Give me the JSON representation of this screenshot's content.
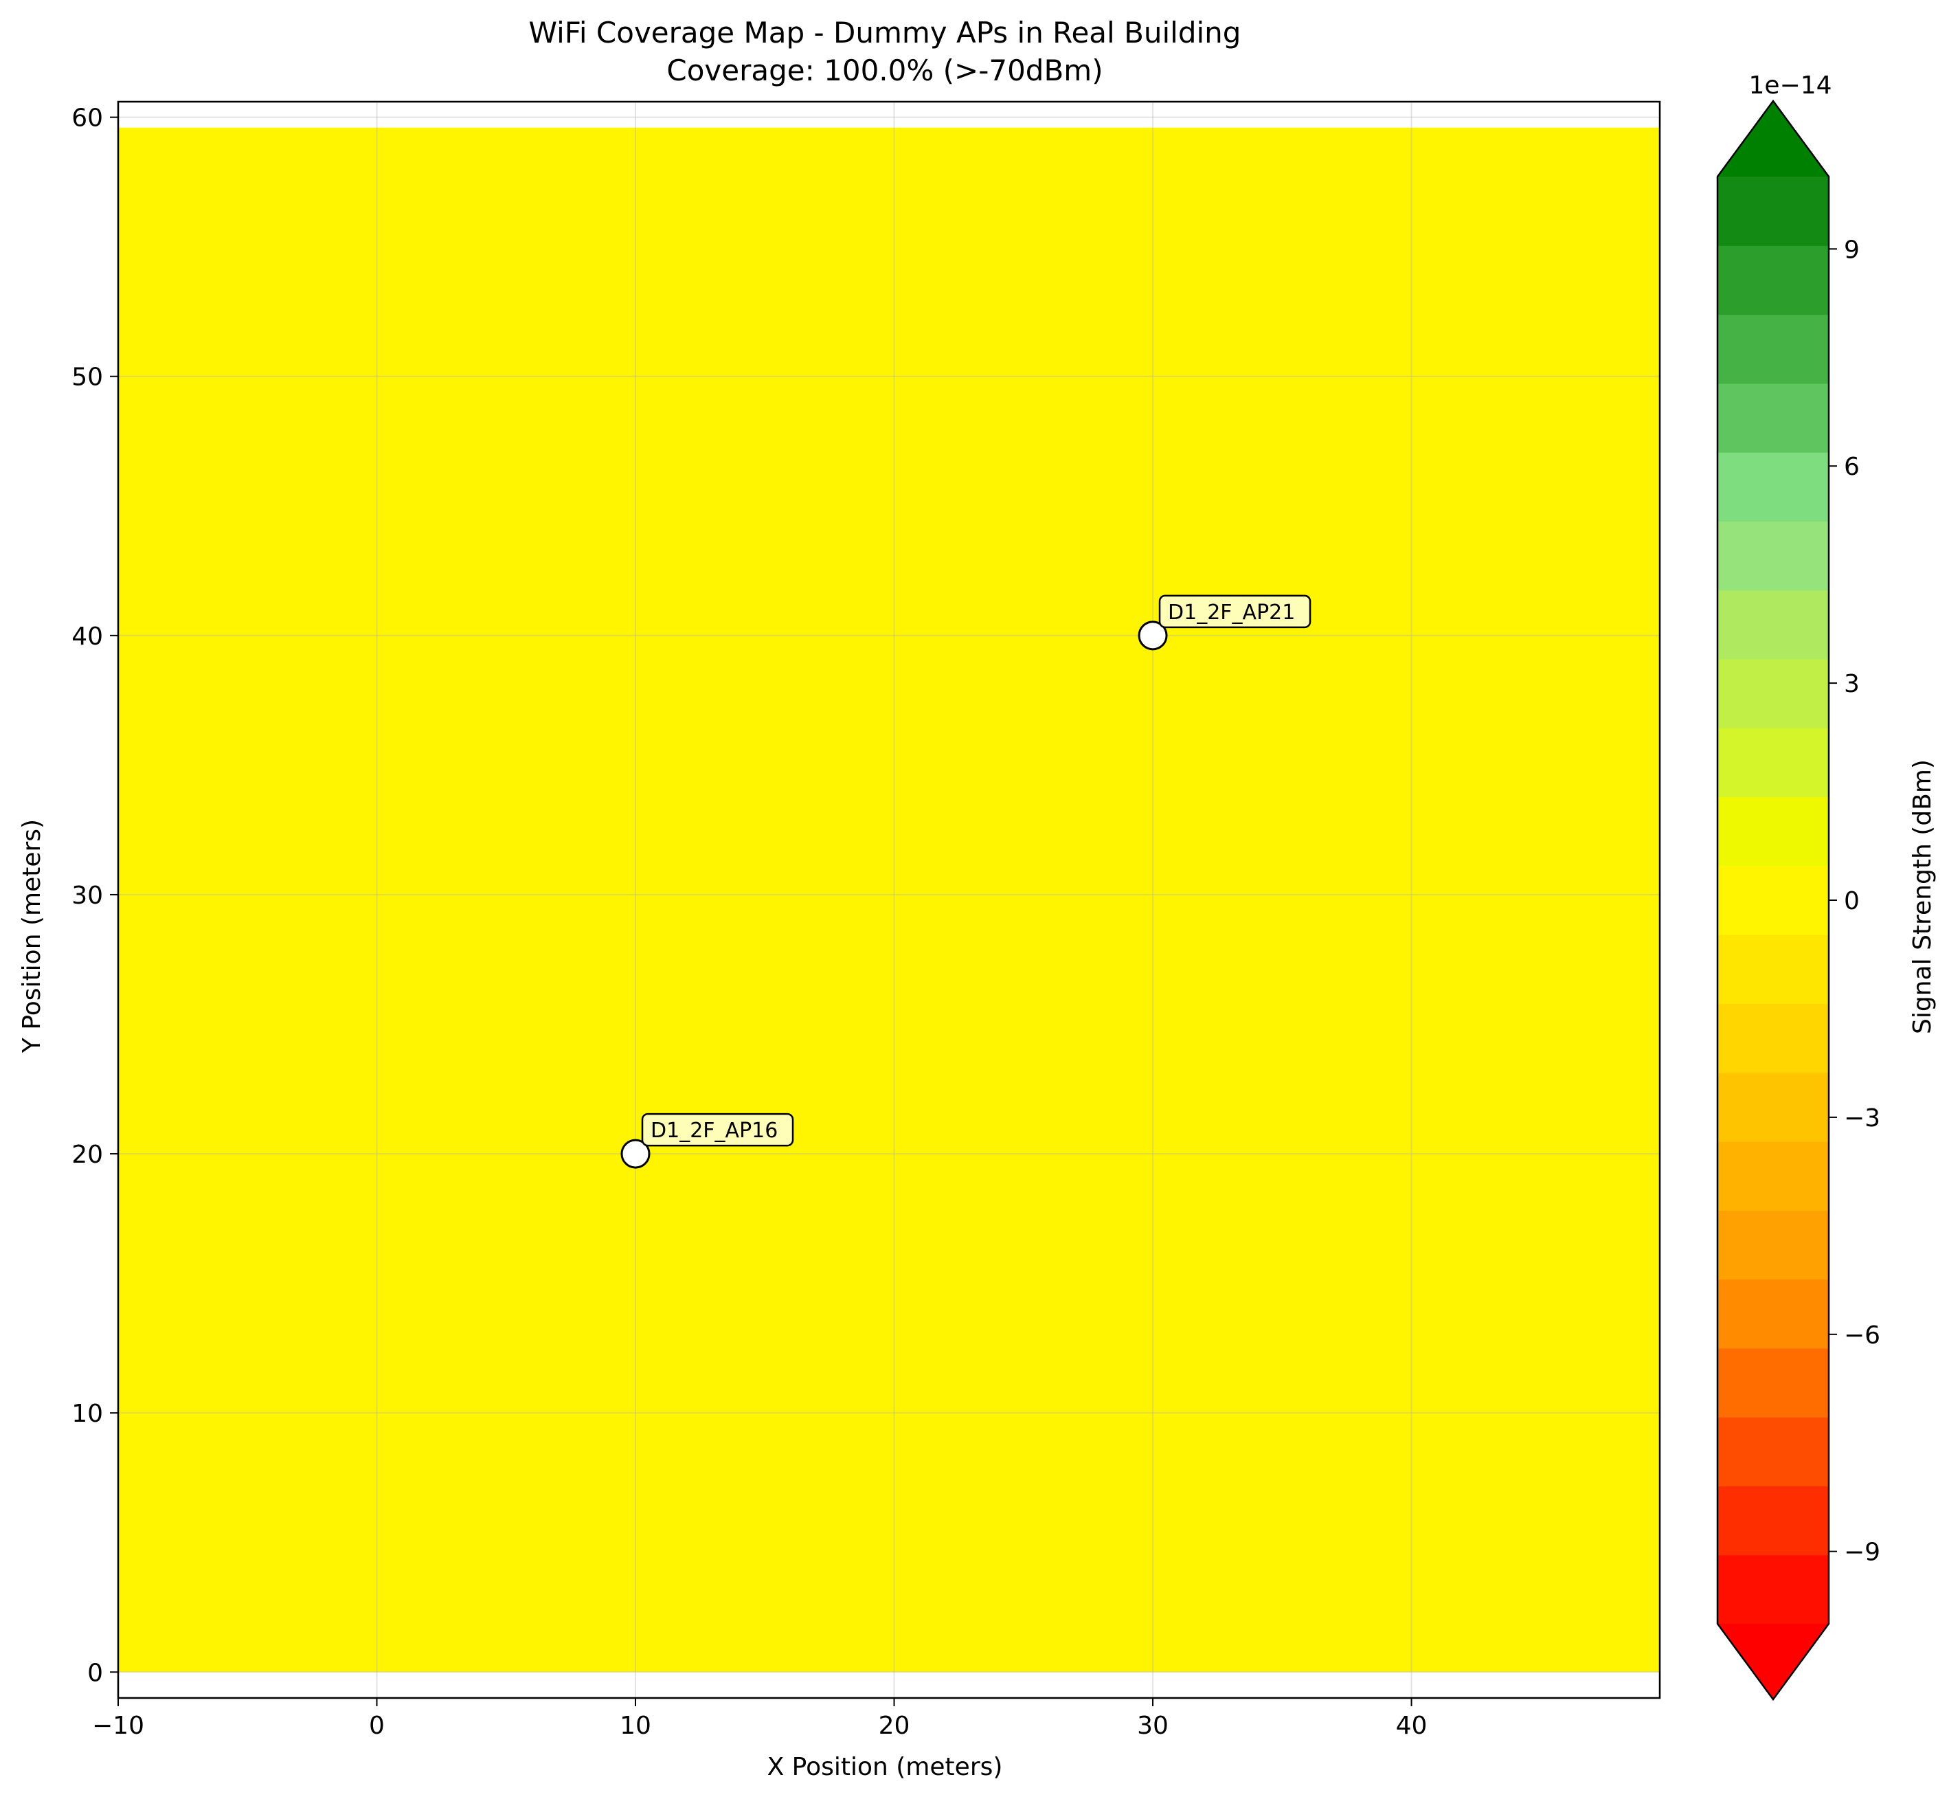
{
  "chart_data": {
    "type": "heatmap",
    "title_line1": "WiFi Coverage Map - Dummy APs in Real Building",
    "title_line2": "Coverage: 100.0% (>-70dBm)",
    "xlabel": "X Position (meters)",
    "ylabel": "Y Position (meters)",
    "xlim": [
      -10,
      49.6
    ],
    "ylim": [
      -1,
      60.6
    ],
    "xticks": [
      -10,
      0,
      10,
      20,
      30,
      40
    ],
    "yticks": [
      0,
      10,
      20,
      30,
      40,
      50,
      60
    ],
    "grid": true,
    "field": {
      "x_range": [
        -10,
        49.6
      ],
      "y_range": [
        0,
        59.6
      ],
      "value": 0,
      "color": "#fff500"
    },
    "access_points": [
      {
        "name": "D1_2F_AP16",
        "x": 10,
        "y": 20
      },
      {
        "name": "D1_2F_AP21",
        "x": 30,
        "y": 40
      }
    ],
    "colorbar": {
      "label": "Signal Strength (dBm)",
      "offset_text": "1e−14",
      "range": [
        -10,
        10
      ],
      "ticks": [
        {
          "value": -9,
          "label": "−9"
        },
        {
          "value": -6,
          "label": "−6"
        },
        {
          "value": -3,
          "label": "−3"
        },
        {
          "value": 0,
          "label": "0"
        },
        {
          "value": 3,
          "label": "3"
        },
        {
          "value": 6,
          "label": "6"
        },
        {
          "value": 9,
          "label": "9"
        }
      ],
      "extend": "both",
      "under_color": "#ff0000",
      "over_color": "#008000",
      "levels": [
        "#ff0f00",
        "#ff2e00",
        "#ff4d00",
        "#ff6c00",
        "#ff8b00",
        "#ffa100",
        "#ffb300",
        "#ffc400",
        "#ffd600",
        "#ffe600",
        "#fff500",
        "#eef900",
        "#d4f52a",
        "#c1ef46",
        "#aee95f",
        "#95e37a",
        "#7edd7e",
        "#5fc65f",
        "#44b244",
        "#2c9e2c",
        "#138a13"
      ]
    }
  }
}
